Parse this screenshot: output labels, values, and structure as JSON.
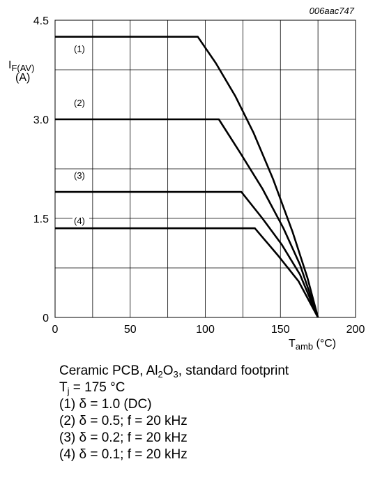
{
  "chart_data": {
    "type": "line",
    "code": "006aac747",
    "ylabel_main": "I",
    "ylabel_sub": "F(AV)",
    "ylabel_unit": "(A)",
    "xlabel_main": "T",
    "xlabel_sub": "amb",
    "xlabel_unit": " (°C)",
    "xlim": [
      0,
      200
    ],
    "ylim": [
      0,
      4.5
    ],
    "x_ticks": [
      0,
      50,
      100,
      150,
      200
    ],
    "y_ticks": [
      {
        "value": 0,
        "label": "0"
      },
      {
        "value": 1.5,
        "label": "1.5"
      },
      {
        "value": 3.0,
        "label": "3.0"
      },
      {
        "value": 4.5,
        "label": "4.5"
      }
    ],
    "grid": true,
    "series": [
      {
        "name": "(1)",
        "color": "#000000",
        "points": [
          [
            0,
            4.25
          ],
          [
            95,
            4.25
          ],
          [
            107,
            3.85
          ],
          [
            120,
            3.35
          ],
          [
            132,
            2.8
          ],
          [
            145,
            2.1
          ],
          [
            158,
            1.3
          ],
          [
            168,
            0.6
          ],
          [
            175,
            0
          ]
        ]
      },
      {
        "name": "(2)",
        "color": "#000000",
        "points": [
          [
            0,
            3.0
          ],
          [
            109,
            3.0
          ],
          [
            123,
            2.5
          ],
          [
            138,
            1.95
          ],
          [
            152,
            1.35
          ],
          [
            163,
            0.8
          ],
          [
            175,
            0
          ]
        ]
      },
      {
        "name": "(3)",
        "color": "#000000",
        "points": [
          [
            0,
            1.9
          ],
          [
            124,
            1.9
          ],
          [
            138,
            1.5
          ],
          [
            151,
            1.1
          ],
          [
            163,
            0.65
          ],
          [
            175,
            0
          ]
        ]
      },
      {
        "name": "(4)",
        "color": "#000000",
        "points": [
          [
            0,
            1.35
          ],
          [
            133,
            1.35
          ],
          [
            148,
            0.95
          ],
          [
            162,
            0.55
          ],
          [
            175,
            0
          ]
        ]
      }
    ]
  },
  "notes": {
    "line1_a": "Ceramic PCB, Al",
    "line1_b": "2",
    "line1_c": "O",
    "line1_d": "3",
    "line1_e": ", standard footprint",
    "line2_a": "T",
    "line2_b": "j",
    "line2_c": " = 175 °C",
    "line3": "(1) δ = 1.0 (DC)",
    "line4": "(2) δ = 0.5; f = 20 kHz",
    "line5": "(3) δ = 0.2; f = 20 kHz",
    "line6": "(4) δ = 0.1; f = 20 kHz"
  }
}
